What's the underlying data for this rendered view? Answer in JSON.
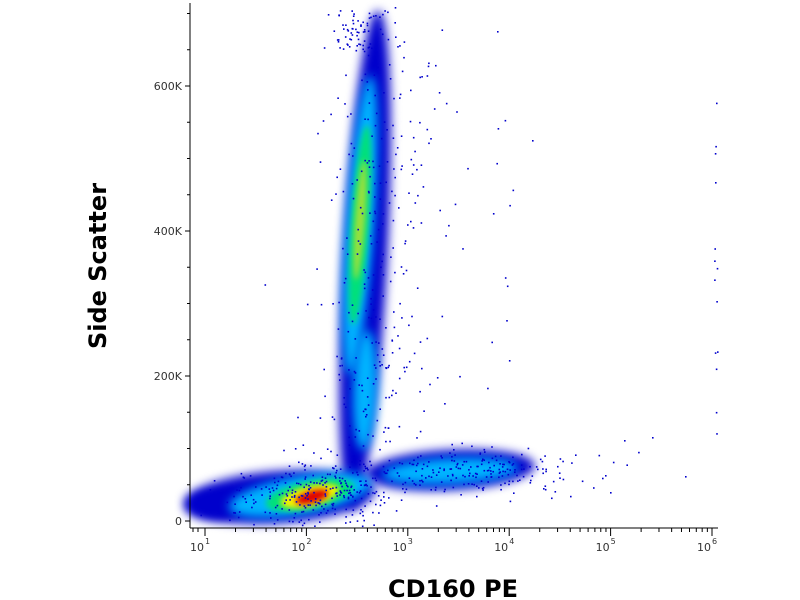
{
  "chart_data": {
    "type": "scatter",
    "title": "",
    "xlabel": "CD160 PE",
    "ylabel": "Side Scatter",
    "x_scale": "log",
    "xlim": [
      0,
      1000000
    ],
    "ylim": [
      -10000,
      710000
    ],
    "x_ticks": [
      {
        "value": 10,
        "base": "10",
        "exp": "1"
      },
      {
        "value": 100,
        "base": "10",
        "exp": "2"
      },
      {
        "value": 1000,
        "base": "10",
        "exp": "3"
      },
      {
        "value": 10000,
        "base": "10",
        "exp": "4"
      },
      {
        "value": 100000,
        "base": "10",
        "exp": "5"
      },
      {
        "value": 1000000,
        "base": "10",
        "exp": "6"
      }
    ],
    "y_ticks": [
      {
        "value": 0,
        "label": "0"
      },
      {
        "value": 200000,
        "label": "200K"
      },
      {
        "value": 400000,
        "label": "400K"
      },
      {
        "value": 600000,
        "label": "600K"
      }
    ],
    "grid": false,
    "colormap": "density (blue-cyan-green-yellow-red)",
    "populations": [
      {
        "name": "low SSC, low CD160",
        "x_center": 120,
        "y_center": 35000
      },
      {
        "name": "low SSC, high CD160",
        "x_center": 4000,
        "y_center": 70000
      },
      {
        "name": "high SSC",
        "x_center": 500,
        "y_center": 420000
      }
    ],
    "colors": {
      "low_density": "#0000cc",
      "mid_low_density": "#00b4ff",
      "mid_density": "#00e07a",
      "mid_high_density": "#f5f000",
      "high_density": "#e00000"
    }
  }
}
